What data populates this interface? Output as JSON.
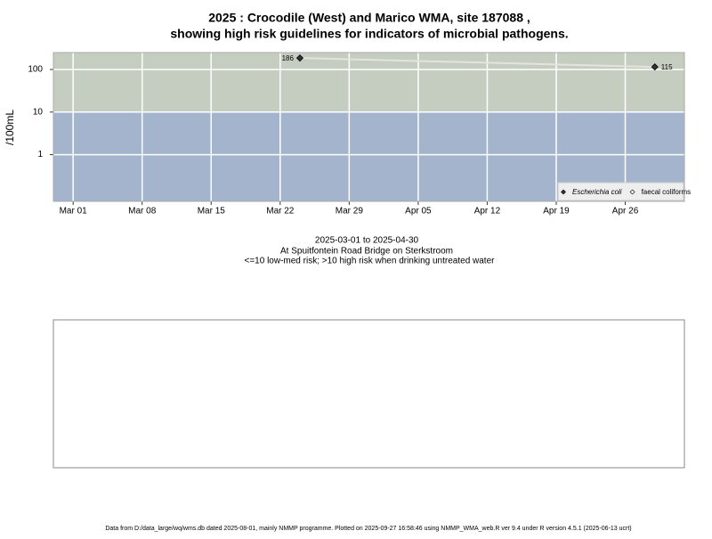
{
  "chart_data": {
    "type": "line",
    "title": [
      "2025 : Crocodile (West) and Marico WMA, site 187088 ,",
      "showing high risk guidelines for indicators of microbial pathogens."
    ],
    "subtitle": [
      "2025-03-01 to 2025-04-30",
      "At Spuitfontein Road Bridge on Sterkstroom",
      "<=10 low-med risk; >10 high risk when drinking untreated water"
    ],
    "y_label": "/100mL",
    "x": [
      "2025-03-24",
      "2025-04-29"
    ],
    "series": [
      {
        "name": "Escherichia coli",
        "color": "#333333",
        "values": [
          186,
          115
        ],
        "value_labels": [
          "186",
          "115"
        ]
      },
      {
        "name": "faecal coliforms",
        "color": "#ffffff",
        "values": [
          null,
          null
        ]
      }
    ],
    "xlim": [
      "2025-02-27",
      "2025-05-02"
    ],
    "xticks": [
      {
        "value": "2025-03-01",
        "label": "Mar 01"
      },
      {
        "value": "2025-03-08",
        "label": "Mar 08"
      },
      {
        "value": "2025-03-15",
        "label": "Mar 15"
      },
      {
        "value": "2025-03-22",
        "label": "Mar 22"
      },
      {
        "value": "2025-03-29",
        "label": "Mar 29"
      },
      {
        "value": "2025-04-05",
        "label": "Apr 05"
      },
      {
        "value": "2025-04-12",
        "label": "Apr 12"
      },
      {
        "value": "2025-04-19",
        "label": "Apr 19"
      },
      {
        "value": "2025-04-26",
        "label": "Apr 26"
      }
    ],
    "ylim": [
      0.08,
      250
    ],
    "yticks": [
      1,
      10,
      100
    ],
    "log_y": true,
    "grid": true,
    "risk_threshold": 10,
    "high_risk_color": "#c4cdc0",
    "low_risk_color": "#a3b4cc",
    "legend_position": "bottom-right",
    "footer": "Data from D:/data_large/wq/wms.db dated 2025-08-01, mainly NMMP programme. Plotted on 2025-09-27 16:58:46 using NMMP_WMA_web.R ver 9.4 under R version 4.5.1 (2025-06-13 ucrt)"
  }
}
